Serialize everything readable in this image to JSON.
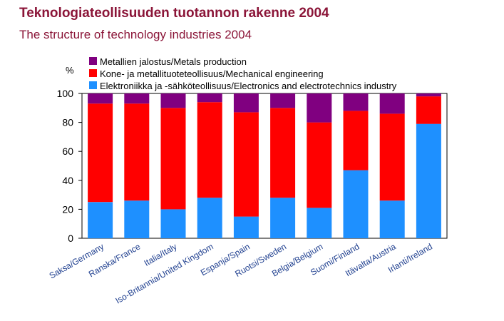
{
  "title": "Teknologiateollisuuden tuotannon rakenne 2004",
  "subtitle": "The structure of technology industries 2004",
  "chart_data": {
    "type": "bar",
    "stacked": true,
    "ylabel": "%",
    "ylim": [
      0,
      100
    ],
    "yticks": [
      0,
      20,
      40,
      60,
      80,
      100
    ],
    "grid": false,
    "legend_position": "top",
    "categories": [
      "Saksa/Germany",
      "Ranska/France",
      "Italia/Italy",
      "Iso-Britannia/United Kingdom",
      "Espanja/Spain",
      "Ruotsi/Sweden",
      "Belgia/Belgium",
      "Suomi/Finland",
      "Itävalta/Austria",
      "Irlanti/Ireland"
    ],
    "series": [
      {
        "name": "Elektroniikka ja -sähköteollisuus/Electronics and electrotechnics industry",
        "color": "#1e90ff",
        "values": [
          25,
          26,
          20,
          28,
          15,
          28,
          21,
          47,
          26,
          79
        ]
      },
      {
        "name": "Kone- ja metallituoteteollisuus/Mechanical engineering",
        "color": "#ff0000",
        "values": [
          68,
          67,
          70,
          66,
          72,
          62,
          59,
          41,
          60,
          19
        ]
      },
      {
        "name": "Metallien jalostus/Metals production",
        "color": "#800080",
        "values": [
          7,
          7,
          10,
          6,
          13,
          10,
          20,
          12,
          14,
          2
        ]
      }
    ]
  }
}
